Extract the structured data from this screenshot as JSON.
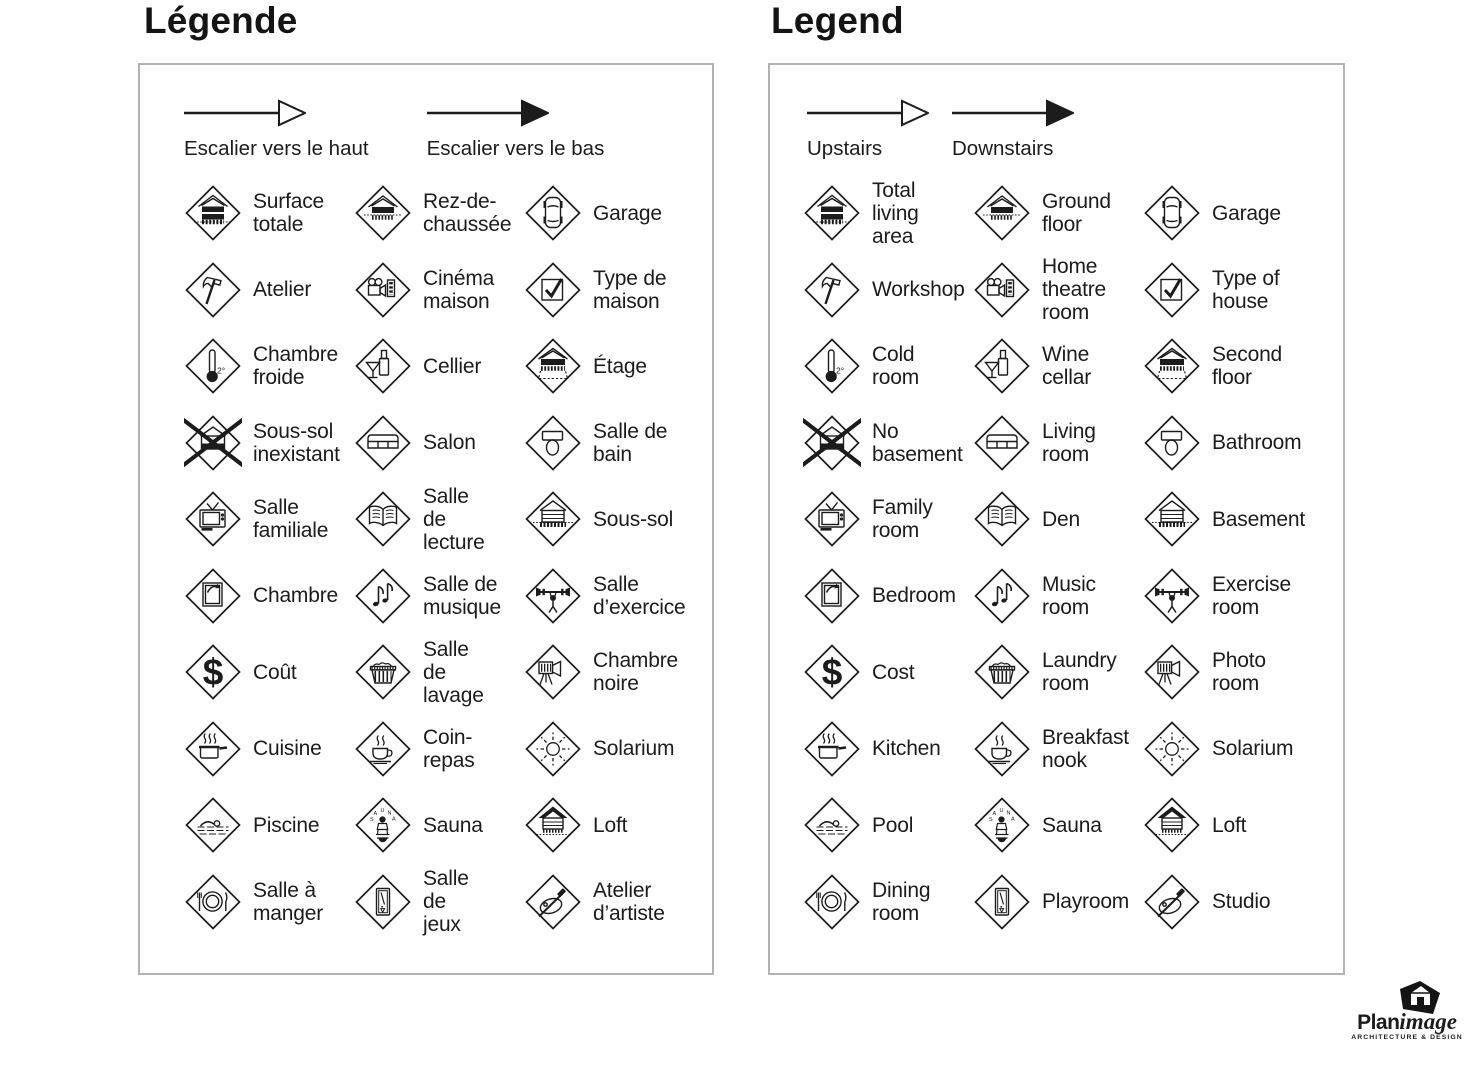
{
  "colors": {
    "ink": "#1c1c1c",
    "panel_border": "#b2b2b5",
    "background": "#ffffff"
  },
  "left_panel": {
    "title": "Légende",
    "arrows": [
      {
        "label": "Escalier vers le haut",
        "style": "open"
      },
      {
        "label": "Escalier vers le bas",
        "style": "filled"
      }
    ],
    "items": [
      {
        "icon": "total-area-house-icon",
        "label": "Surface\ntotale"
      },
      {
        "icon": "ground-floor-house-icon",
        "label": "Rez-de-\nchaussée"
      },
      {
        "icon": "car-icon",
        "label": "Garage"
      },
      {
        "icon": "hammer-icon",
        "label": "Atelier"
      },
      {
        "icon": "projector-icon",
        "label": "Cinéma\nmaison"
      },
      {
        "icon": "checkmark-box-icon",
        "label": "Type de\nmaison"
      },
      {
        "icon": "thermometer-icon",
        "label": "Chambre\nfroide"
      },
      {
        "icon": "wine-icon",
        "label": "Cellier"
      },
      {
        "icon": "second-floor-house-icon",
        "label": "Étage"
      },
      {
        "icon": "no-basement-icon",
        "label": "Sous-sol\ninexistant"
      },
      {
        "icon": "sofa-icon",
        "label": "Salon"
      },
      {
        "icon": "toilet-icon",
        "label": "Salle de\nbain"
      },
      {
        "icon": "tv-icon",
        "label": "Salle\nfamiliale"
      },
      {
        "icon": "open-book-icon",
        "label": "Salle de\nlecture"
      },
      {
        "icon": "basement-house-icon",
        "label": "Sous-sol"
      },
      {
        "icon": "window-icon",
        "label": "Chambre"
      },
      {
        "icon": "music-notes-icon",
        "label": "Salle de\nmusique"
      },
      {
        "icon": "weightlifter-icon",
        "label": "Salle\nd’exercice"
      },
      {
        "icon": "dollar-icon",
        "label": "Coût"
      },
      {
        "icon": "laundry-basket-icon",
        "label": "Salle de\nlavage"
      },
      {
        "icon": "camera-tripod-icon",
        "label": "Chambre\nnoire"
      },
      {
        "icon": "cooking-pot-icon",
        "label": "Cuisine"
      },
      {
        "icon": "coffee-cup-icon",
        "label": "Coin-\nrepas"
      },
      {
        "icon": "sun-icon",
        "label": "Solarium"
      },
      {
        "icon": "swimmer-icon",
        "label": "Piscine"
      },
      {
        "icon": "sauna-icon",
        "label": "Sauna"
      },
      {
        "icon": "loft-house-icon",
        "label": "Loft"
      },
      {
        "icon": "plate-cutlery-icon",
        "label": "Salle à\nmanger"
      },
      {
        "icon": "pool-table-icon",
        "label": "Salle de\njeux"
      },
      {
        "icon": "palette-icon",
        "label": "Atelier\nd’artiste"
      }
    ]
  },
  "right_panel": {
    "title": "Legend",
    "arrows": [
      {
        "label": "Upstairs",
        "style": "open"
      },
      {
        "label": "Downstairs",
        "style": "filled"
      }
    ],
    "items": [
      {
        "icon": "total-area-house-icon",
        "label": "Total\nliving\narea"
      },
      {
        "icon": "ground-floor-house-icon",
        "label": "Ground\nfloor"
      },
      {
        "icon": "car-icon",
        "label": "Garage"
      },
      {
        "icon": "hammer-icon",
        "label": "Workshop"
      },
      {
        "icon": "projector-icon",
        "label": "Home\ntheatre\nroom"
      },
      {
        "icon": "checkmark-box-icon",
        "label": "Type of\nhouse"
      },
      {
        "icon": "thermometer-icon",
        "label": "Cold\nroom"
      },
      {
        "icon": "wine-icon",
        "label": "Wine\ncellar"
      },
      {
        "icon": "second-floor-house-icon",
        "label": "Second\nfloor"
      },
      {
        "icon": "no-basement-icon",
        "label": "No\nbasement"
      },
      {
        "icon": "sofa-icon",
        "label": "Living\nroom"
      },
      {
        "icon": "toilet-icon",
        "label": "Bathroom"
      },
      {
        "icon": "tv-icon",
        "label": "Family\nroom"
      },
      {
        "icon": "open-book-icon",
        "label": "Den"
      },
      {
        "icon": "basement-house-icon",
        "label": "Basement"
      },
      {
        "icon": "window-icon",
        "label": "Bedroom"
      },
      {
        "icon": "music-notes-icon",
        "label": "Music\nroom"
      },
      {
        "icon": "weightlifter-icon",
        "label": "Exercise\nroom"
      },
      {
        "icon": "dollar-icon",
        "label": "Cost"
      },
      {
        "icon": "laundry-basket-icon",
        "label": "Laundry\nroom"
      },
      {
        "icon": "camera-tripod-icon",
        "label": "Photo\nroom"
      },
      {
        "icon": "cooking-pot-icon",
        "label": "Kitchen"
      },
      {
        "icon": "coffee-cup-icon",
        "label": "Breakfast\nnook"
      },
      {
        "icon": "sun-icon",
        "label": "Solarium"
      },
      {
        "icon": "swimmer-icon",
        "label": "Pool"
      },
      {
        "icon": "sauna-icon",
        "label": "Sauna"
      },
      {
        "icon": "loft-house-icon",
        "label": "Loft"
      },
      {
        "icon": "plate-cutlery-icon",
        "label": "Dining\nroom"
      },
      {
        "icon": "pool-table-icon",
        "label": "Playroom"
      },
      {
        "icon": "palette-icon",
        "label": "Studio"
      }
    ]
  },
  "logo": {
    "brand_bold": "Plan",
    "brand_italic": "image",
    "tagline": "ARCHITECTURE & DESIGN"
  }
}
